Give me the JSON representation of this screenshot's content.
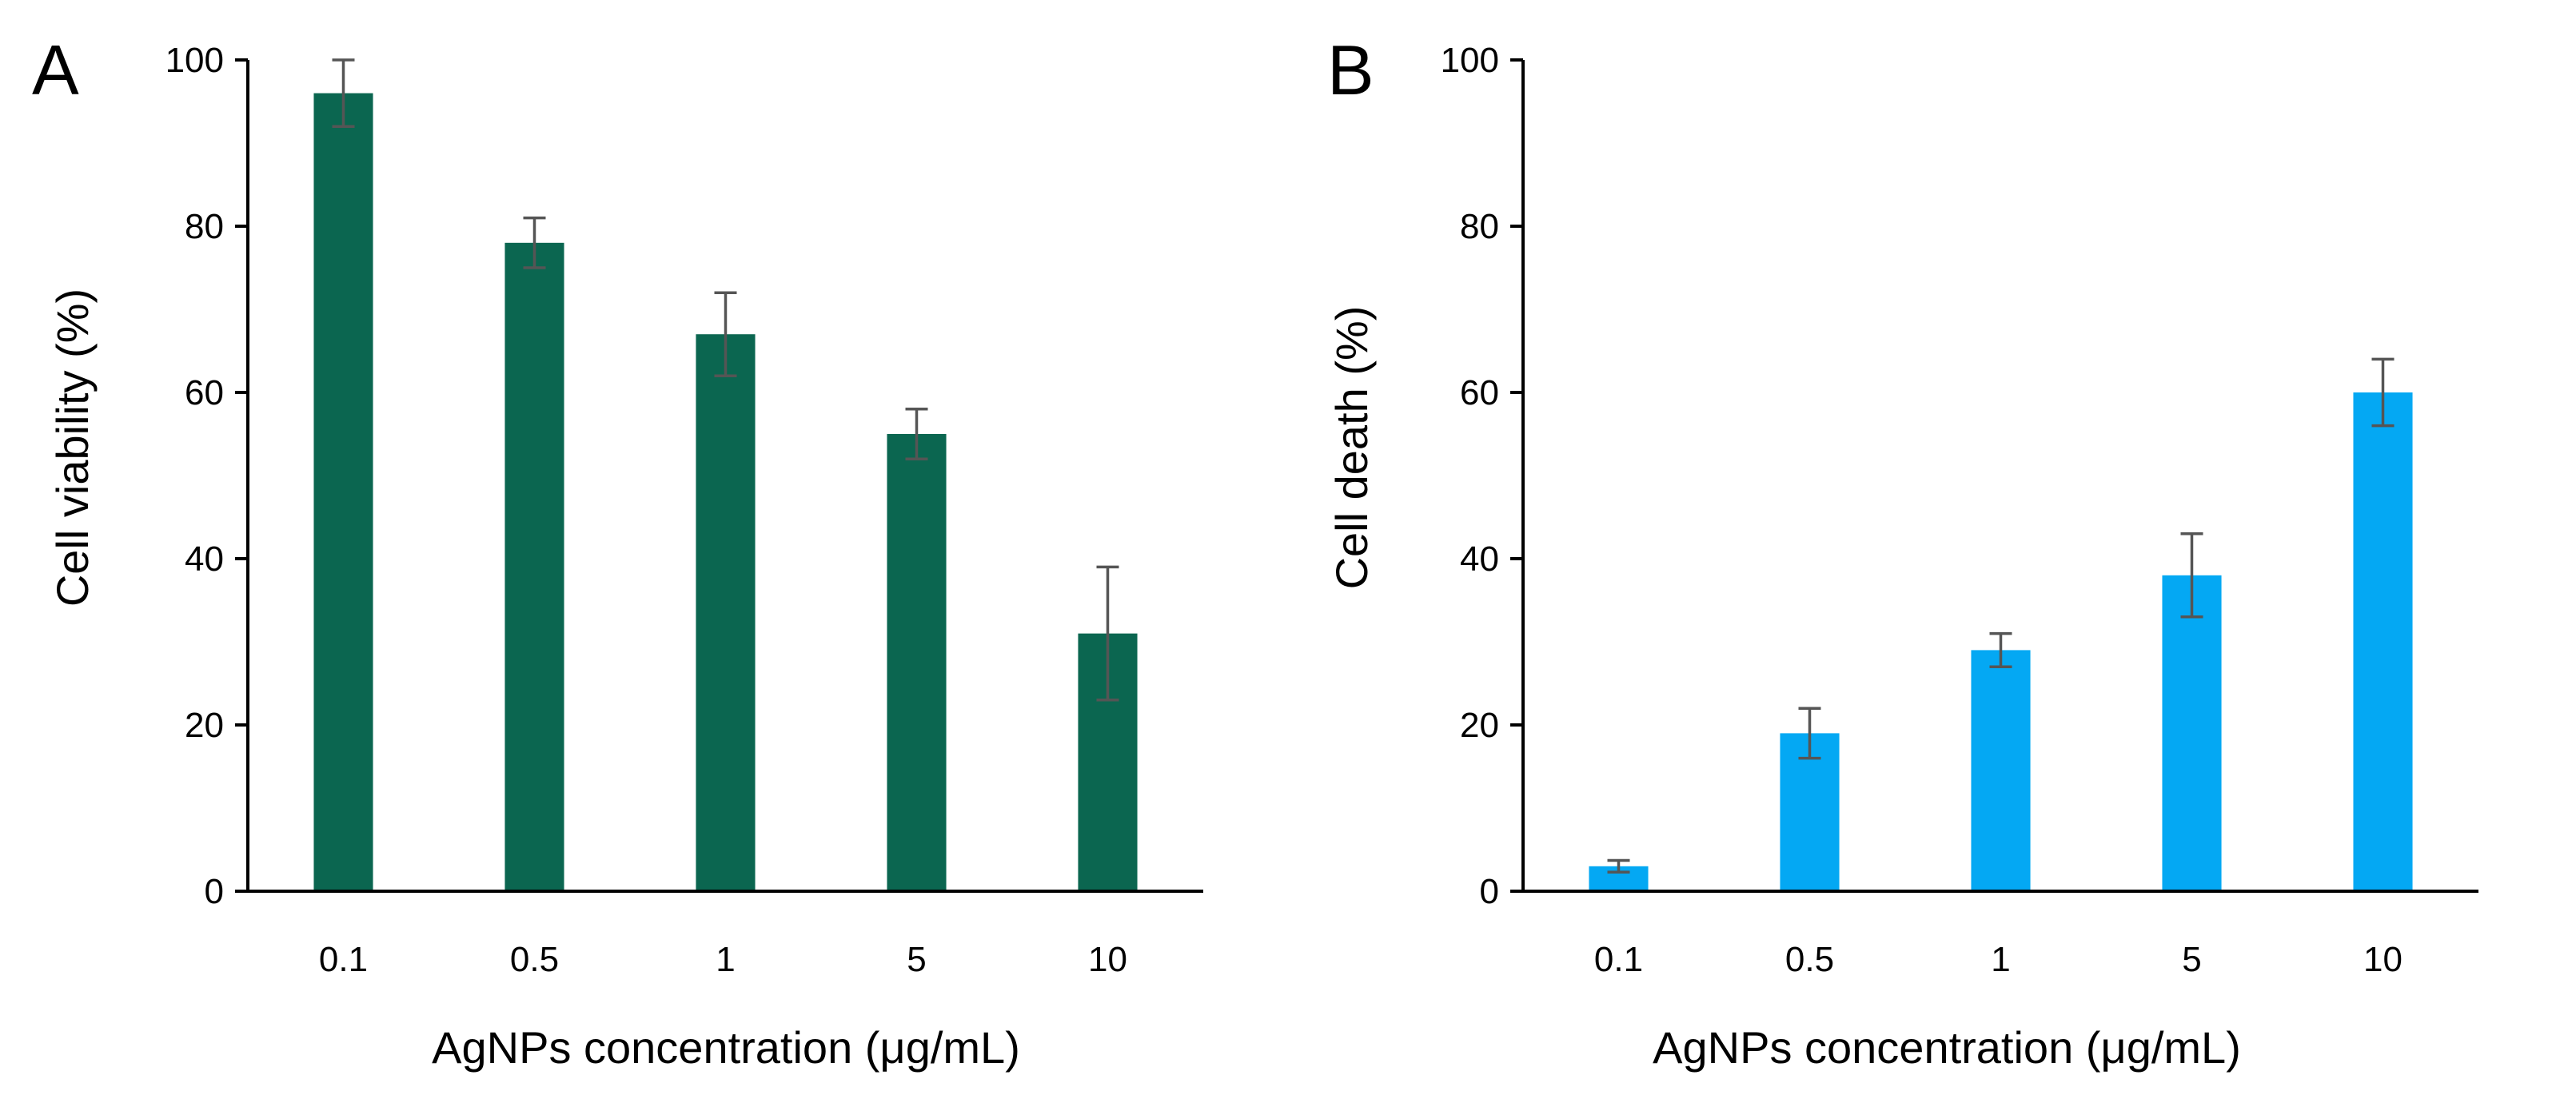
{
  "chart_data": [
    {
      "panel": "A",
      "type": "bar",
      "title": "",
      "xlabel": "AgNPs concentration (μg/mL)",
      "ylabel": "Cell viability (%)",
      "ylim": [
        0,
        100
      ],
      "yticks": [
        0,
        20,
        40,
        60,
        80,
        100
      ],
      "categories": [
        "0.1",
        "0.5",
        "1",
        "5",
        "10"
      ],
      "values": [
        96,
        78,
        67,
        55,
        31
      ],
      "errors": [
        4,
        3,
        5,
        3,
        8
      ],
      "color": "#0b6650",
      "grid": false
    },
    {
      "panel": "B",
      "type": "bar",
      "title": "",
      "xlabel": "AgNPs concentration (μg/mL)",
      "ylabel": "Cell death (%)",
      "ylim": [
        0,
        100
      ],
      "yticks": [
        0,
        20,
        40,
        60,
        80,
        100
      ],
      "categories": [
        "0.1",
        "0.5",
        "1",
        "5",
        "10"
      ],
      "values": [
        3,
        19,
        29,
        38,
        60
      ],
      "errors": [
        0.7,
        3,
        2,
        5,
        4
      ],
      "color": "#04a8f3",
      "grid": false
    }
  ]
}
